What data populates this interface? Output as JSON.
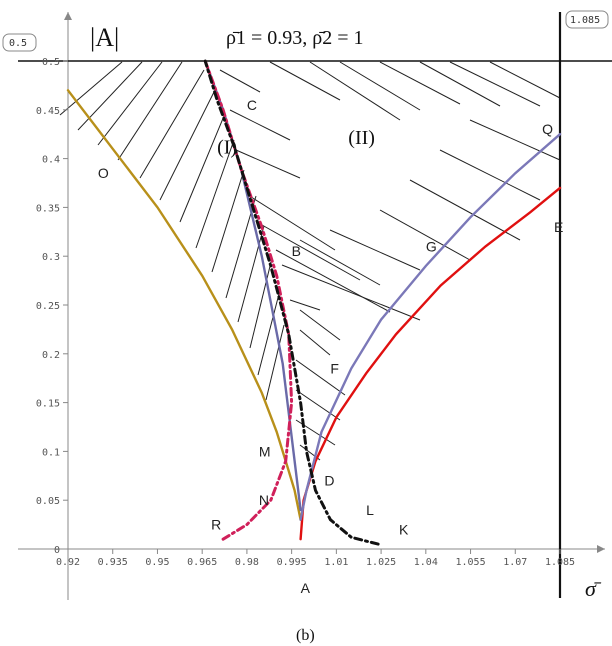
{
  "chart_data": {
    "type": "line",
    "title": "ρ̄1 = 0.93, ρ̄2 = 1",
    "ylabel": "|A|",
    "xlabel": "σ̄",
    "panel_label": "(b)",
    "xlim": [
      0.92,
      1.085
    ],
    "ylim": [
      0,
      0.5
    ],
    "x_ticks": [
      "0.92",
      "0.935",
      "0.95",
      "0.965",
      "0.98",
      "0.995",
      "1.01",
      "1.025",
      "1.04",
      "1.055",
      "1.07",
      "1.085"
    ],
    "y_ticks": [
      "0",
      "0.05",
      "0.1",
      "0.15",
      "0.2",
      "0.25",
      "0.3",
      "0.35",
      "0.4",
      "0.45",
      "0.5"
    ],
    "y_box_label": "0.5",
    "x_box_label": "1.085",
    "grid": false,
    "vertical_line_x": 1.085,
    "horizontal_line_y": 0.5,
    "regions": [
      "(I)",
      "(II)"
    ],
    "point_labels": [
      "A",
      "B",
      "C",
      "D",
      "E",
      "F",
      "G",
      "K",
      "L",
      "M",
      "N",
      "O",
      "Q",
      "R"
    ],
    "series": [
      {
        "color": "#b8901a",
        "style": "solid",
        "x": [
          0.92,
          0.935,
          0.95,
          0.965,
          0.975,
          0.985,
          0.99,
          0.994,
          0.996,
          0.998
        ],
        "y": [
          0.47,
          0.41,
          0.35,
          0.28,
          0.225,
          0.16,
          0.12,
          0.08,
          0.06,
          0.03
        ]
      },
      {
        "color": "#e01010",
        "style": "solid",
        "x": [
          0.998,
          0.999,
          1.003,
          1.01,
          1.02,
          1.03,
          1.045,
          1.06,
          1.075,
          1.085
        ],
        "y": [
          0.01,
          0.05,
          0.09,
          0.135,
          0.18,
          0.22,
          0.27,
          0.31,
          0.345,
          0.37
        ]
      },
      {
        "color": "#7b78b8",
        "style": "solid",
        "x": [
          0.998,
          1.0,
          1.005,
          1.015,
          1.025,
          1.04,
          1.055,
          1.07,
          1.085
        ],
        "y": [
          0.03,
          0.06,
          0.12,
          0.185,
          0.235,
          0.29,
          0.34,
          0.385,
          0.425
        ]
      },
      {
        "color": "#6a6aa8",
        "style": "solid",
        "x": [
          0.998,
          0.992,
          0.985,
          0.978,
          0.972,
          0.966
        ],
        "y": [
          0.04,
          0.19,
          0.3,
          0.39,
          0.45,
          0.5
        ]
      },
      {
        "color": "#d0205a",
        "style": "dashdot",
        "x": [
          0.972,
          0.98,
          0.988,
          0.993,
          0.995,
          0.994,
          0.99,
          0.985,
          0.978,
          0.972,
          0.966
        ],
        "y": [
          0.01,
          0.025,
          0.05,
          0.09,
          0.15,
          0.22,
          0.28,
          0.33,
          0.39,
          0.45,
          0.5
        ]
      },
      {
        "color": "#111111",
        "style": "dashdot",
        "x": [
          1.024,
          1.015,
          1.008,
          1.003,
          1.0,
          0.998,
          0.994,
          0.988,
          0.982,
          0.976,
          0.97,
          0.966
        ],
        "y": [
          0.005,
          0.012,
          0.03,
          0.06,
          0.1,
          0.15,
          0.22,
          0.29,
          0.35,
          0.41,
          0.46,
          0.5
        ]
      }
    ],
    "label_points": [
      {
        "label": "A",
        "x": 0.998,
        "y": -0.045
      },
      {
        "label": "B",
        "x": 0.995,
        "y": 0.3
      },
      {
        "label": "C",
        "x": 0.98,
        "y": 0.45
      },
      {
        "label": "D",
        "x": 1.006,
        "y": 0.065
      },
      {
        "label": "E",
        "x": 1.083,
        "y": 0.325
      },
      {
        "label": "F",
        "x": 1.008,
        "y": 0.18
      },
      {
        "label": "G",
        "x": 1.04,
        "y": 0.305
      },
      {
        "label": "K",
        "x": 1.031,
        "y": 0.015
      },
      {
        "label": "L",
        "x": 1.02,
        "y": 0.035
      },
      {
        "label": "M",
        "x": 0.984,
        "y": 0.095
      },
      {
        "label": "N",
        "x": 0.984,
        "y": 0.045
      },
      {
        "label": "O",
        "x": 0.93,
        "y": 0.38
      },
      {
        "label": "Q",
        "x": 1.079,
        "y": 0.425
      },
      {
        "label": "R",
        "x": 0.968,
        "y": 0.02
      },
      {
        "label": "(I)",
        "x": 0.97,
        "y": 0.405
      },
      {
        "label": "(II)",
        "x": 1.014,
        "y": 0.415
      }
    ]
  }
}
